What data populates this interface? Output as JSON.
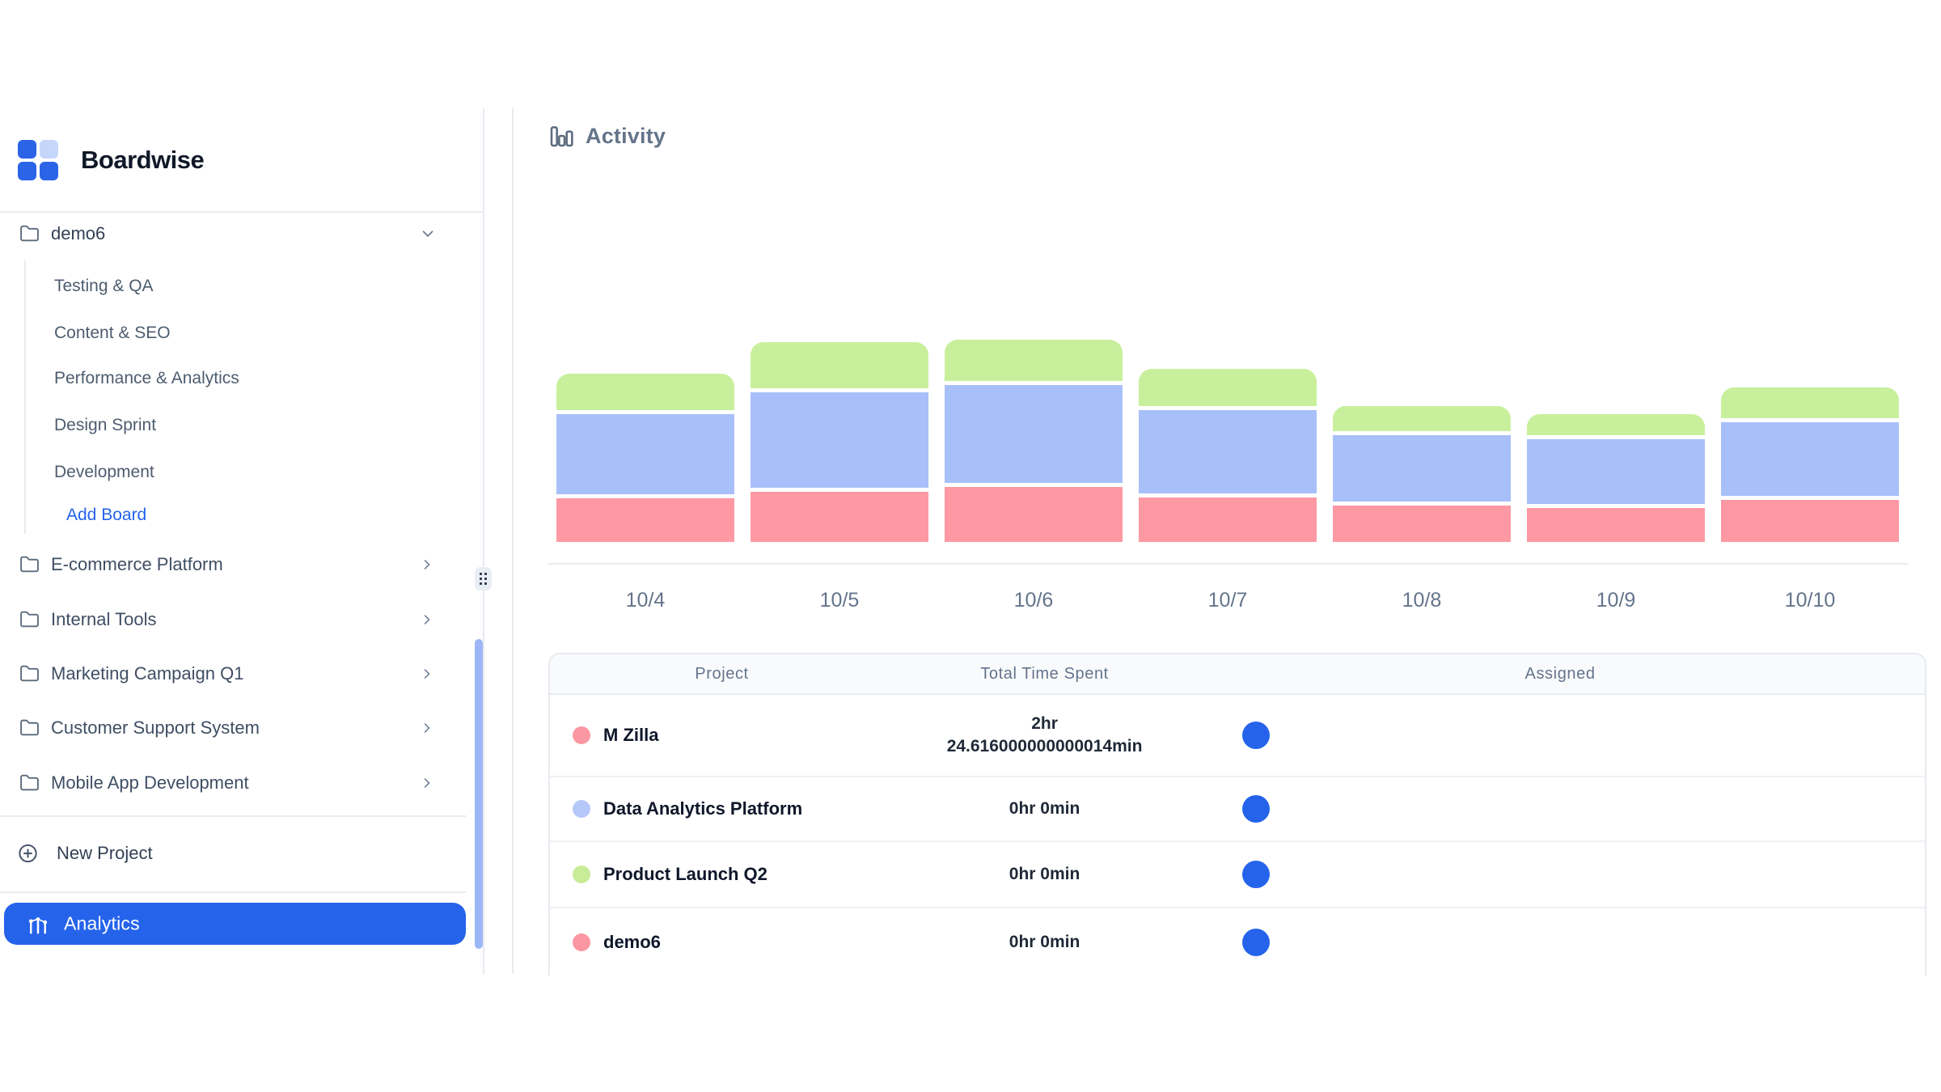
{
  "app_title": "Boardwise",
  "accent_color": "#2563eb",
  "sidebar": {
    "logo": {
      "name": "boardwise-logo",
      "square_colors": [
        "#2c64e8",
        "#c6d6fb",
        "#2c64e8",
        "#2c64e8"
      ]
    },
    "expanded_project": {
      "label": "demo6",
      "boards": [
        "Testing & QA",
        "Content & SEO",
        "Performance & Analytics",
        "Design Sprint",
        "Development"
      ],
      "add_board_label": "Add Board"
    },
    "collapsed_projects": [
      {
        "label": "E-commerce Platform"
      },
      {
        "label": "Internal Tools"
      },
      {
        "label": "Marketing Campaign Q1"
      },
      {
        "label": "Customer Support System"
      },
      {
        "label": "Mobile App Development"
      }
    ],
    "new_project_label": "New Project",
    "analytics_label": "Analytics"
  },
  "main": {
    "header": {
      "title": "Activity"
    },
    "table": {
      "columns": [
        "Project",
        "Total Time Spent",
        "Assigned"
      ],
      "rows": [
        {
          "project": "M Zilla",
          "dot_color": "#fb97a2",
          "time_lines": [
            "2hr",
            "24.616000000000014min"
          ],
          "assigned_color": "#2563eb"
        },
        {
          "project": "Data Analytics Platform",
          "dot_color": "#b6c8f9",
          "time_lines": [
            "0hr 0min"
          ],
          "assigned_color": "#2563eb"
        },
        {
          "project": "Product Launch Q2",
          "dot_color": "#c9ec98",
          "time_lines": [
            "0hr 0min"
          ],
          "assigned_color": "#2563eb"
        },
        {
          "project": "demo6",
          "dot_color": "#fb97a2",
          "time_lines": [
            "0hr 0min"
          ],
          "assigned_color": "#2563eb"
        }
      ]
    }
  },
  "chart_data": {
    "type": "bar",
    "stacked": true,
    "title": "Activity",
    "xlabel": "",
    "ylabel": "",
    "grid": false,
    "legend": false,
    "categories": [
      "10/4",
      "10/5",
      "10/6",
      "10/7",
      "10/8",
      "10/9",
      "10/10"
    ],
    "series": [
      {
        "name": "M Zilla",
        "color": "#fe99a3",
        "values": [
          54,
          62,
          68,
          55,
          45,
          42,
          52
        ]
      },
      {
        "name": "Data Analytics Platform",
        "color": "#a8c0f9",
        "values": [
          99,
          118,
          121,
          103,
          82,
          80,
          91
        ]
      },
      {
        "name": "Product Launch Q2",
        "color": "#c8f09c",
        "values": [
          45,
          57,
          51,
          46,
          31,
          26,
          38
        ]
      }
    ],
    "value_units": "relative stacked segment heights (no y-axis shown in UI)",
    "series_order_bottom_to_top": [
      "M Zilla",
      "Data Analytics Platform",
      "Product Launch Q2"
    ]
  }
}
